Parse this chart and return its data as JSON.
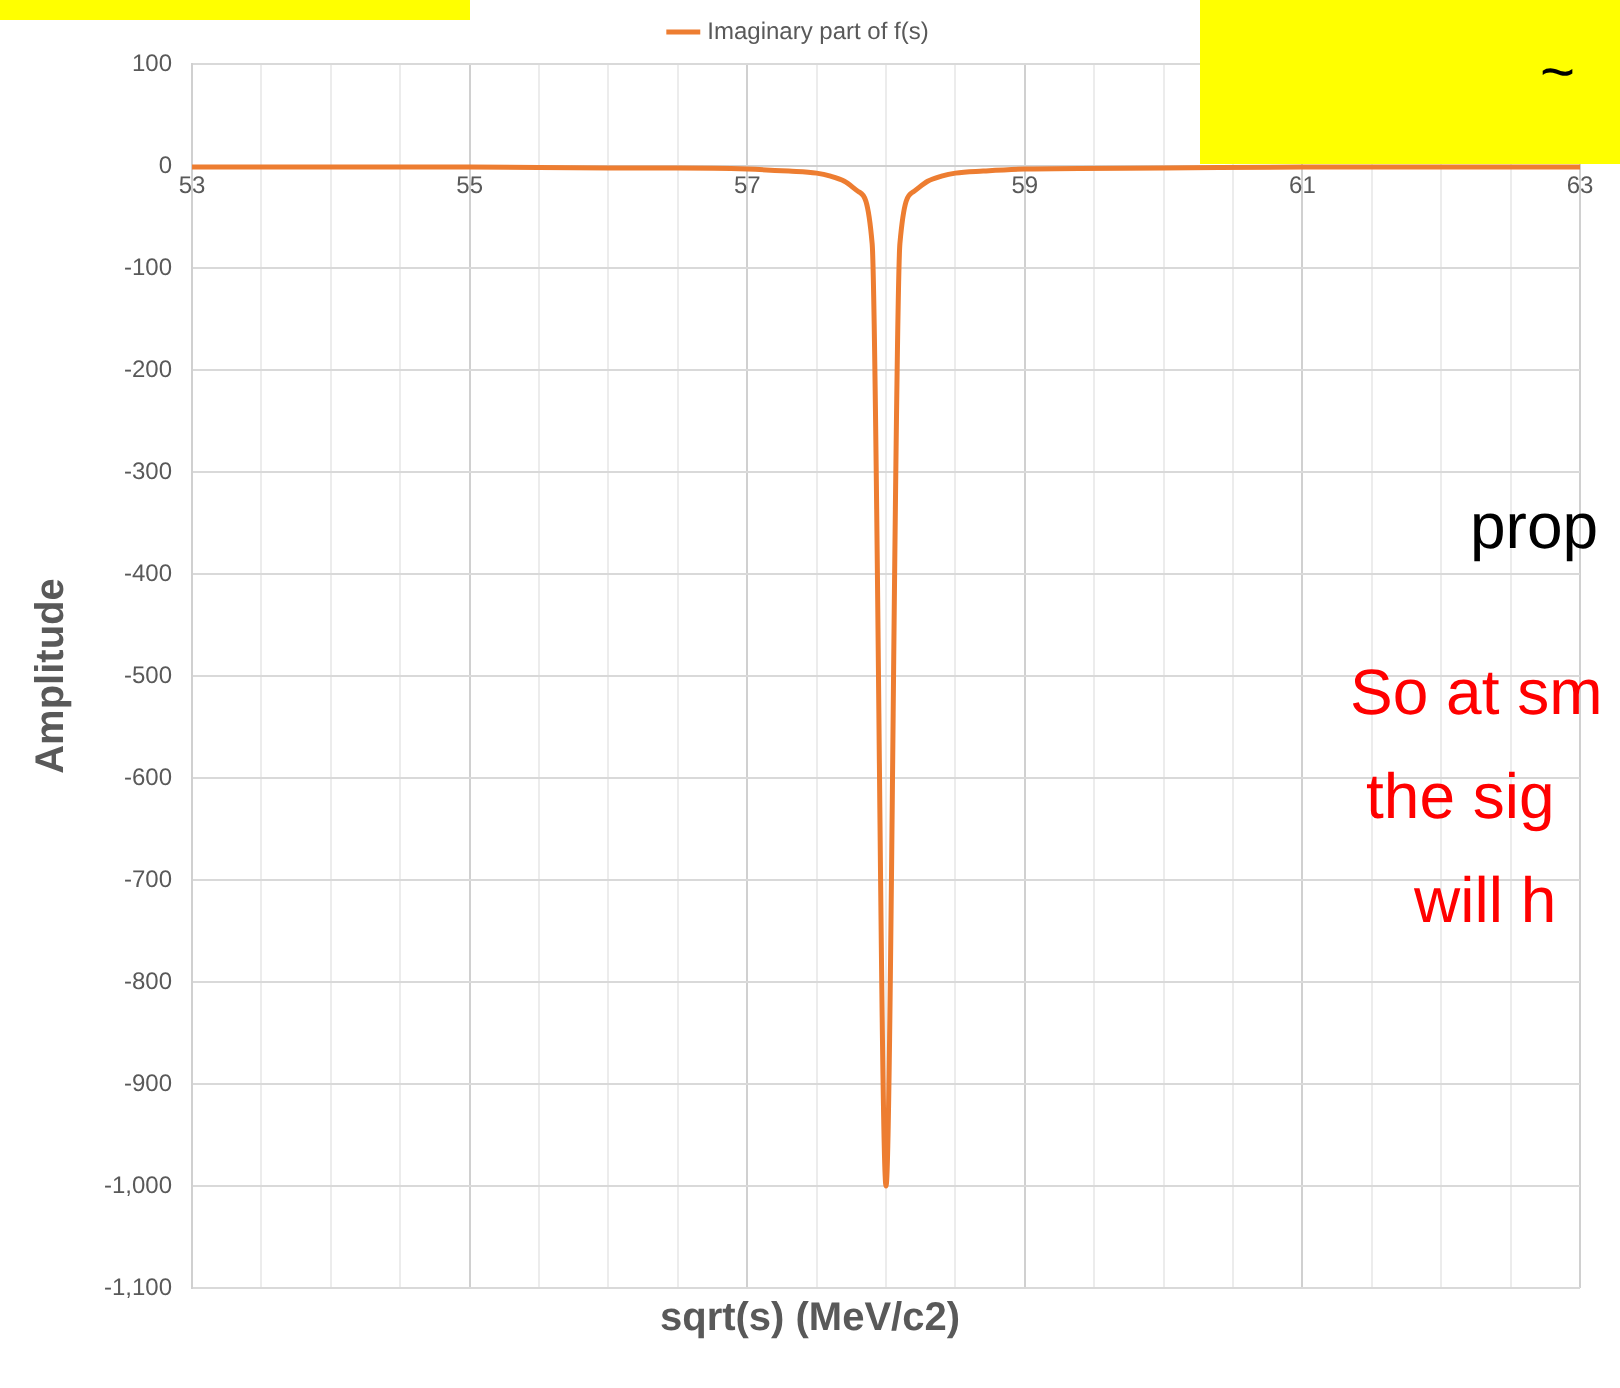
{
  "chart_data": {
    "type": "line",
    "xlabel": "sqrt(s) (MeV/c2)",
    "ylabel": "Amplitude",
    "annotations": [
      "~",
      "prop",
      "So at sm",
      "the sig",
      "will h"
    ],
    "series": [
      {
        "name": "Imaginary part of f(s)",
        "color": "#ed7d31",
        "x": [
          53,
          54,
          55,
          56,
          56.5,
          57,
          57.3,
          57.5,
          57.6,
          57.7,
          57.8,
          57.9,
          58,
          58.1,
          58.2,
          58.3,
          58.4,
          58.5,
          58.7,
          59,
          60,
          61,
          62,
          63
        ],
        "values": [
          -1,
          -1,
          -1,
          -2,
          -2,
          -3,
          -5,
          -7,
          -10,
          -15,
          -25,
          -76,
          -1000,
          -76,
          -25,
          -15,
          -10,
          -7,
          -5,
          -3,
          -2,
          -1,
          -1,
          -1
        ]
      }
    ],
    "xlim": [
      53,
      63
    ],
    "xticks": [
      53,
      {
        "value": 53.5,
        "label": null
      },
      {
        "value": 54,
        "label": null
      },
      {
        "value": 54.5,
        "label": null
      },
      55,
      {
        "value": 55.5,
        "label": null
      },
      {
        "value": 56,
        "label": null
      },
      {
        "value": 56.5,
        "label": null
      },
      57,
      {
        "value": 57.5,
        "label": null
      },
      {
        "value": 58,
        "label": null
      },
      {
        "value": 58.5,
        "label": null
      },
      59,
      {
        "value": 59.5,
        "label": null
      },
      {
        "value": 60,
        "label": null
      },
      {
        "value": 60.5,
        "label": null
      },
      61,
      {
        "value": 61.5,
        "label": null
      },
      {
        "value": 62,
        "label": null
      },
      {
        "value": 62.5,
        "label": null
      },
      63
    ],
    "ylim": [
      -1100,
      100
    ],
    "yticks": [
      {
        "value": -1100,
        "label": "-1,100"
      },
      {
        "value": -1000,
        "label": "-1,000"
      },
      -900,
      -800,
      -700,
      -600,
      -500,
      -400,
      -300,
      -200,
      -100,
      0,
      100
    ],
    "grid": true,
    "legend": "top",
    "marker": "none",
    "line_style": "solid"
  }
}
